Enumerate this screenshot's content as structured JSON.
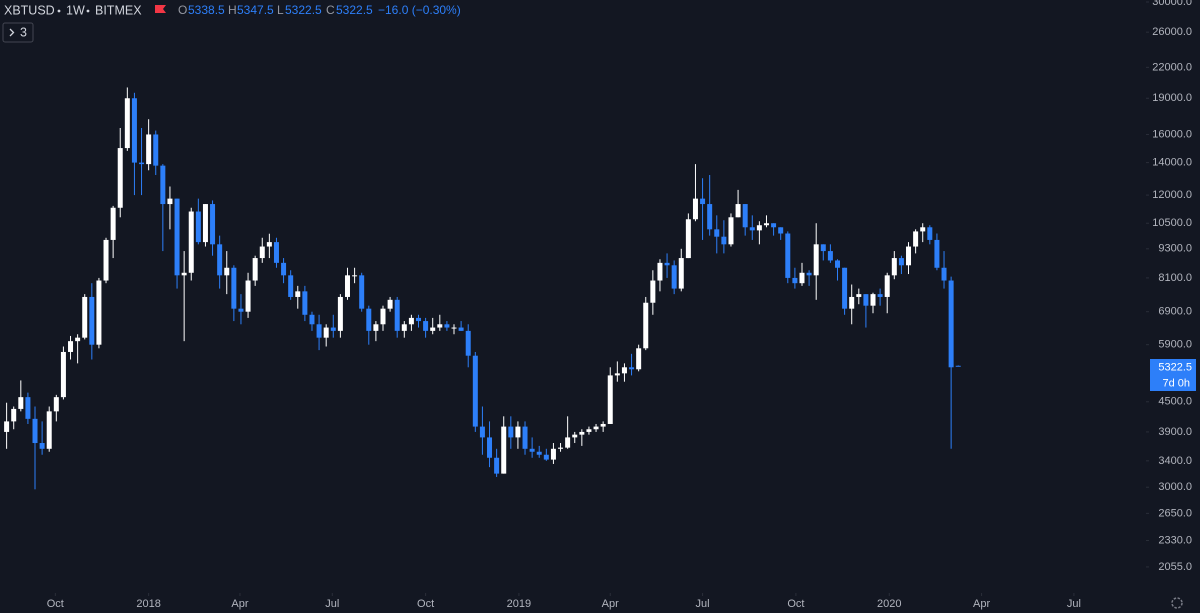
{
  "chart_data": {
    "type": "candlestick",
    "title": "XBTUSD",
    "interval": "1W",
    "exchange": "BITMEX",
    "ohlc_labels": [
      "O",
      "H",
      "L",
      "C"
    ],
    "change_label": "−16.0 (−0.30%)",
    "collapse_count": 3,
    "countdown": "7d 0h",
    "up_color": "#ffffff",
    "down_color": "#2d7ff9",
    "log_scale": true,
    "open": [
      3900,
      4100,
      4350,
      4600,
      4150,
      3700,
      3600,
      4300,
      4600,
      5700,
      6000,
      6100,
      7400,
      5900,
      8000,
      9700,
      11300,
      15000,
      19000,
      14000,
      13900,
      16000,
      13800,
      11500,
      11800,
      8200,
      8300,
      11100,
      9600,
      11500,
      9500,
      8200,
      8500,
      7000,
      6900,
      8000,
      8900,
      9400,
      9600,
      8700,
      8200,
      7400,
      7600,
      6800,
      6500,
      6100,
      6400,
      6300,
      7400,
      8200,
      8200,
      7000,
      6300,
      6500,
      7000,
      7300,
      6300,
      6500,
      6700,
      6600,
      6300,
      6400,
      6500,
      6400,
      6400,
      6300,
      5600,
      4000,
      3800,
      3450,
      3200,
      4000,
      3800,
      4000,
      3600,
      3550,
      3500,
      3420,
      3600,
      3620,
      3800,
      3850,
      3900,
      3950,
      4000,
      4050,
      5100,
      5150,
      5300,
      5250,
      5800,
      7200,
      8000,
      8700,
      8600,
      7700,
      8900,
      10700,
      11800,
      11500,
      10200,
      9850,
      9500,
      10800,
      11500,
      10300,
      10150,
      10400,
      10500,
      10300,
      10000,
      8100,
      7900,
      8300,
      8200,
      9500,
      9200,
      8800,
      8500,
      7000,
      7400,
      7500,
      7100,
      7500,
      7400,
      8200,
      8900,
      8600,
      9400,
      10100,
      10300,
      9700,
      8500,
      8000,
      5338.5
    ],
    "high": [
      4480,
      4400,
      4980,
      4700,
      4400,
      4100,
      4400,
      4650,
      5850,
      6150,
      6200,
      7500,
      7900,
      8100,
      9800,
      11400,
      16500,
      20000,
      19500,
      16500,
      17200,
      16300,
      13900,
      12500,
      11800,
      9200,
      11300,
      11800,
      11500,
      11700,
      9900,
      9200,
      8600,
      7500,
      8300,
      9000,
      9800,
      9990,
      9800,
      8900,
      8400,
      7800,
      7800,
      6900,
      6800,
      6500,
      6800,
      7500,
      8500,
      8500,
      8300,
      7100,
      6600,
      7100,
      7400,
      7400,
      6600,
      6800,
      6800,
      6700,
      6700,
      6800,
      6600,
      6500,
      6600,
      6500,
      5700,
      4400,
      4100,
      3600,
      4200,
      4200,
      4100,
      4100,
      3800,
      3650,
      3600,
      3700,
      3700,
      4200,
      3900,
      3950,
      4000,
      4050,
      4100,
      5300,
      5450,
      5400,
      5650,
      5900,
      7400,
      8400,
      8850,
      9100,
      8800,
      9300,
      11000,
      13900,
      13000,
      13200,
      10900,
      10650,
      11000,
      12300,
      11500,
      10900,
      10600,
      10900,
      10500,
      10300,
      10100,
      8500,
      8700,
      8400,
      10500,
      9500,
      9500,
      8850,
      8500,
      7850,
      7700,
      7500,
      7550,
      7700,
      8300,
      9200,
      9000,
      9600,
      10200,
      10500,
      10400,
      10000,
      9200,
      8150,
      5347.5
    ],
    "low": [
      3600,
      3950,
      4300,
      4050,
      2970,
      3500,
      3550,
      4100,
      4550,
      5500,
      5400,
      6050,
      5500,
      5800,
      7900,
      8900,
      10800,
      14800,
      12000,
      12000,
      13500,
      13200,
      9200,
      10200,
      7700,
      6000,
      8000,
      9500,
      9400,
      9000,
      7700,
      7500,
      6600,
      6500,
      6700,
      7800,
      8700,
      8900,
      8500,
      7900,
      7300,
      7000,
      6600,
      6300,
      5750,
      5850,
      6100,
      6100,
      7300,
      7900,
      6900,
      5900,
      6000,
      6300,
      6900,
      6100,
      6100,
      6300,
      6400,
      6100,
      6200,
      6300,
      6300,
      6200,
      6300,
      5300,
      3900,
      3500,
      3300,
      3150,
      3200,
      3600,
      3600,
      3500,
      3450,
      3450,
      3400,
      3350,
      3550,
      3600,
      3700,
      3650,
      3850,
      3900,
      3900,
      4050,
      4950,
      4950,
      5100,
      5200,
      5750,
      6800,
      7600,
      8100,
      7500,
      7600,
      8900,
      10600,
      9700,
      9900,
      9100,
      9100,
      9400,
      10800,
      9900,
      9700,
      9500,
      10300,
      9900,
      9700,
      7900,
      7700,
      7800,
      7800,
      7300,
      8800,
      8700,
      8000,
      6800,
      6500,
      7150,
      6400,
      6850,
      7100,
      6850,
      8050,
      8250,
      8250,
      9100,
      9600,
      9500,
      8400,
      7700,
      3600,
      5322.5
    ],
    "close": [
      4100,
      4350,
      4600,
      4150,
      3700,
      3600,
      4300,
      4600,
      5700,
      6000,
      6100,
      7400,
      5900,
      8000,
      9700,
      11300,
      15000,
      19000,
      14000,
      13900,
      16000,
      13800,
      11500,
      11800,
      8200,
      8300,
      11100,
      9600,
      11500,
      9500,
      8200,
      8500,
      7000,
      6900,
      8000,
      8900,
      9400,
      9600,
      8700,
      8200,
      7400,
      7600,
      6800,
      6500,
      6100,
      6400,
      6300,
      7400,
      8200,
      8200,
      7000,
      6300,
      6500,
      7000,
      7300,
      6300,
      6500,
      6700,
      6600,
      6300,
      6400,
      6500,
      6400,
      6400,
      6300,
      5600,
      4000,
      3800,
      3450,
      3200,
      4000,
      3800,
      4000,
      3600,
      3550,
      3500,
      3420,
      3600,
      3620,
      3800,
      3850,
      3900,
      3950,
      4000,
      4050,
      5100,
      5150,
      5300,
      5250,
      5800,
      7200,
      8000,
      8700,
      8600,
      7700,
      8900,
      10700,
      11800,
      11500,
      10200,
      9850,
      9500,
      10800,
      11500,
      10300,
      10150,
      10400,
      10500,
      10300,
      10000,
      8100,
      7900,
      8300,
      8200,
      9500,
      9200,
      8800,
      8500,
      7000,
      7400,
      7500,
      7100,
      7500,
      7400,
      8200,
      8900,
      8600,
      9400,
      10100,
      10300,
      9700,
      8500,
      8000,
      5300,
      5322.5
    ],
    "xlim": [
      -0.93,
      160.3
    ],
    "xticks": [
      {
        "value": 6.86,
        "label": "Oct"
      },
      {
        "value": 20,
        "label": "2018"
      },
      {
        "value": 32.86,
        "label": "Apr"
      },
      {
        "value": 45.86,
        "label": "Jul"
      },
      {
        "value": 59,
        "label": "Oct"
      },
      {
        "value": 72.14,
        "label": "2019"
      },
      {
        "value": 85,
        "label": "Apr"
      },
      {
        "value": 98,
        "label": "Jul"
      },
      {
        "value": 111.14,
        "label": "Oct"
      },
      {
        "value": 124.29,
        "label": "2020"
      },
      {
        "value": 137.29,
        "label": "Apr"
      },
      {
        "value": 150.29,
        "label": "Jul"
      }
    ],
    "ylim": [
      1816,
      30286
    ],
    "yticks": [
      {
        "value": 30000,
        "label": "30000.0"
      },
      {
        "value": 26000,
        "label": "26000.0"
      },
      {
        "value": 22000,
        "label": "22000.0"
      },
      {
        "value": 19000,
        "label": "19000.0"
      },
      {
        "value": 16000,
        "label": "16000.0"
      },
      {
        "value": 14000,
        "label": "14000.0"
      },
      {
        "value": 12000,
        "label": "12000.0"
      },
      {
        "value": 10500,
        "label": "10500.0"
      },
      {
        "value": 9300,
        "label": "9300.0"
      },
      {
        "value": 8100,
        "label": "8100.0"
      },
      {
        "value": 6900,
        "label": "6900.0"
      },
      {
        "value": 5900,
        "label": "5900.0"
      },
      {
        "value": 4500,
        "label": "4500.0"
      },
      {
        "value": 3900,
        "label": "3900.0"
      },
      {
        "value": 3400,
        "label": "3400.0"
      },
      {
        "value": 3000,
        "label": "3000.0"
      },
      {
        "value": 2650,
        "label": "2650.0"
      },
      {
        "value": 2330,
        "label": "2330.0"
      },
      {
        "value": 2055,
        "label": "2055.0"
      }
    ]
  }
}
